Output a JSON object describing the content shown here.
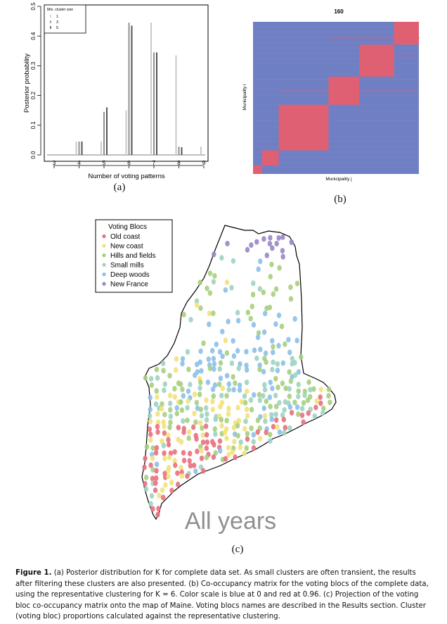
{
  "figure": {
    "panel_a_label": "(a)",
    "panel_b_label": "(b)",
    "panel_c_label": "(c)",
    "caption_label": "Figure 1.",
    "caption_text": "(a) Posterior distribution for K for complete data set. As small clusters are often transient, the results after filtering these clusters are also presented. (b) Co-occupancy matrix for the voting blocs of the complete data, using the representative clustering for K = 6. Color scale is blue at 0 and red at 0.96. (c) Projection of the voting bloc co-occupancy matrix onto the map of Maine. Voting blocs names are described in the Results section. Cluster (voting bloc) proportions calculated against the representative clustering."
  },
  "chart_data": [
    {
      "type": "bar",
      "xlabel": "Number of voting patterns",
      "ylabel": "Posterior probability",
      "xlim": [
        2.7,
        9.3
      ],
      "ylim": [
        0,
        0.5
      ],
      "x_ticks": [
        "3",
        "4",
        "5",
        "6",
        "7",
        "8",
        "9"
      ],
      "y_ticks": [
        "0.0",
        "0.1",
        "0.2",
        "0.3",
        "0.4",
        "0.5"
      ],
      "legend_title": "Min. cluster size",
      "legend_position": "top-left",
      "categories": [
        3,
        4,
        5,
        6,
        7,
        8,
        9
      ],
      "series": [
        {
          "name": "1",
          "color": "#c8c8c8",
          "values": [
            0,
            0.045,
            0.045,
            0.15,
            0.445,
            0.335,
            0.028
          ]
        },
        {
          "name": "3",
          "color": "#909090",
          "values": [
            0,
            0.045,
            0.145,
            0.445,
            0.345,
            0.028,
            0
          ]
        },
        {
          "name": "5",
          "color": "#555555",
          "values": [
            0,
            0.045,
            0.16,
            0.435,
            0.345,
            0.026,
            0
          ]
        }
      ]
    },
    {
      "type": "heatmap",
      "title": "160",
      "xlabel": "Municipality j",
      "ylabel": "Municipality i",
      "color_low": "#6f7fc4",
      "color_high": "#e85d6a",
      "blocks_diagonal_fraction": [
        0.055,
        0.1,
        0.3,
        0.185,
        0.21,
        0.15
      ]
    },
    {
      "type": "scatter",
      "title": "All years",
      "legend_title": "Voting Blocs",
      "legend_position": "top-left",
      "series": [
        {
          "name": "Old coast",
          "color": "#e8707e"
        },
        {
          "name": "New coast",
          "color": "#f2e27a"
        },
        {
          "name": "Hills and fields",
          "color": "#a6cf7d"
        },
        {
          "name": "Small mills",
          "color": "#9fd3c2"
        },
        {
          "name": "Deep woods",
          "color": "#8cc0e8"
        },
        {
          "name": "New France",
          "color": "#9a86c4"
        }
      ]
    }
  ]
}
